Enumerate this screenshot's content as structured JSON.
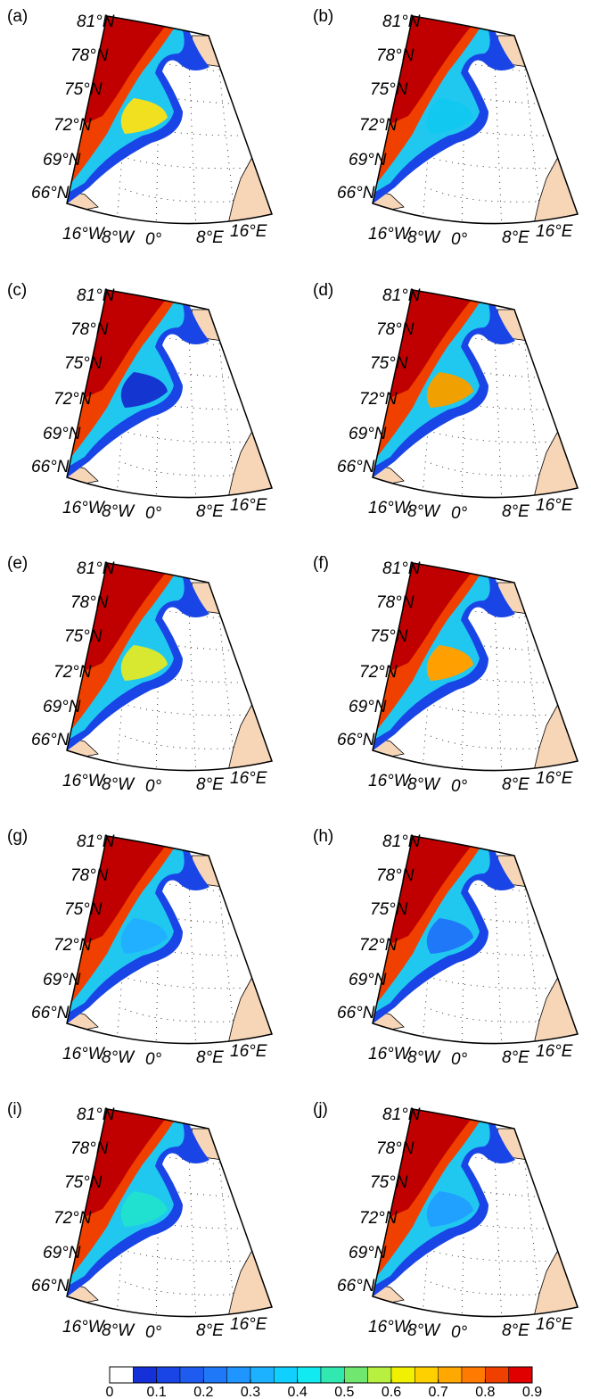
{
  "panels": [
    {
      "label": "(a)"
    },
    {
      "label": "(b)"
    },
    {
      "label": "(c)"
    },
    {
      "label": "(d)"
    },
    {
      "label": "(e)"
    },
    {
      "label": "(f)"
    },
    {
      "label": "(g)"
    },
    {
      "label": "(h)"
    },
    {
      "label": "(i)"
    },
    {
      "label": "(j)"
    }
  ],
  "lat_labels": [
    "81°N",
    "78°N",
    "75°N",
    "72°N",
    "69°N",
    "66°N"
  ],
  "lon_labels": [
    "16°W",
    "8°W",
    "0°",
    "8°E",
    "16°E"
  ],
  "colorbar": {
    "lim": [
      0,
      0.9
    ],
    "ticks": [
      0,
      0.1,
      0.2,
      0.3,
      0.4,
      0.5,
      0.6,
      0.7,
      0.8,
      0.9
    ],
    "colors": [
      "#ffffff",
      "#1530d8",
      "#1a45e6",
      "#1e5cf0",
      "#1f78f8",
      "#1e95ff",
      "#1cb2ff",
      "#10d0ff",
      "#10eaf0",
      "#30e8b0",
      "#70e870",
      "#b8f040",
      "#f0f000",
      "#ffd000",
      "#ffa800",
      "#ff7a00",
      "#f04000",
      "#e00000"
    ]
  }
}
